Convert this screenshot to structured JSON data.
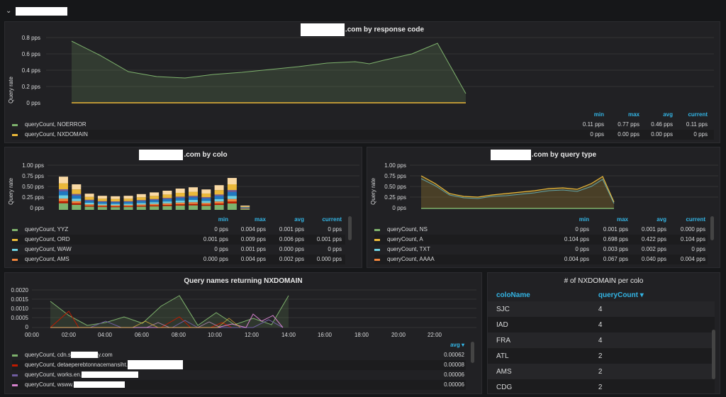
{
  "row": {
    "chevron": "⌄"
  },
  "panel1": {
    "title": ".com by response code",
    "ylabel": "Query rate",
    "yticks": [
      "0.8 pps",
      "0.6 pps",
      "0.4 pps",
      "0.2 pps",
      "0 pps"
    ],
    "headers": {
      "min": "min",
      "max": "max",
      "avg": "avg",
      "current": "current"
    },
    "series": [
      {
        "name": "queryCount, NOERROR",
        "color": "#7eb26d",
        "min": "0.11 pps",
        "max": "0.77 pps",
        "avg": "0.46 pps",
        "current": "0.11 pps"
      },
      {
        "name": "queryCount, NXDOMAIN",
        "color": "#eab839",
        "min": "0 pps",
        "max": "0.00 pps",
        "avg": "0.00 pps",
        "current": "0 pps"
      }
    ]
  },
  "panel2": {
    "title": ".com by colo",
    "ylabel": "Query rate",
    "yticks": [
      "1.00 pps",
      "0.75 pps",
      "0.50 pps",
      "0.25 pps",
      "0 pps"
    ],
    "headers": {
      "min": "min",
      "max": "max",
      "avg": "avg",
      "current": "current"
    },
    "series": [
      {
        "name": "queryCount, YYZ",
        "color": "#7eb26d",
        "min": "0 pps",
        "max": "0.004 pps",
        "avg": "0.001 pps",
        "current": "0 pps"
      },
      {
        "name": "queryCount, ORD",
        "color": "#eab839",
        "min": "0.001 pps",
        "max": "0.009 pps",
        "avg": "0.006 pps",
        "current": "0.001 pps"
      },
      {
        "name": "queryCount, WAW",
        "color": "#6ed0e0",
        "min": "0 pps",
        "max": "0.001 pps",
        "avg": "0.000 pps",
        "current": "0 pps"
      },
      {
        "name": "queryCount, AMS",
        "color": "#ef843c",
        "min": "0.000 pps",
        "max": "0.004 pps",
        "avg": "0.002 pps",
        "current": "0.000 pps"
      }
    ]
  },
  "panel3": {
    "title": ".com by query type",
    "ylabel": "Query rate",
    "yticks": [
      "1.00 pps",
      "0.75 pps",
      "0.50 pps",
      "0.25 pps",
      "0 pps"
    ],
    "headers": {
      "min": "min",
      "max": "max",
      "avg": "avg",
      "current": "current"
    },
    "series": [
      {
        "name": "queryCount, NS",
        "color": "#7eb26d",
        "min": "0 pps",
        "max": "0.001 pps",
        "avg": "0.001 pps",
        "current": "0.000 pps"
      },
      {
        "name": "queryCount, A",
        "color": "#eab839",
        "min": "0.104 pps",
        "max": "0.698 pps",
        "avg": "0.422 pps",
        "current": "0.104 pps"
      },
      {
        "name": "queryCount, TXT",
        "color": "#6ed0e0",
        "min": "0 pps",
        "max": "0.003 pps",
        "avg": "0.002 pps",
        "current": "0 pps"
      },
      {
        "name": "queryCount, AAAA",
        "color": "#ef843c",
        "min": "0.004 pps",
        "max": "0.067 pps",
        "avg": "0.040 pps",
        "current": "0.004 pps"
      }
    ]
  },
  "panel4": {
    "title": "Query names returning NXDOMAIN",
    "yticks": [
      "0.0020",
      "0.0015",
      "0.0010",
      "0.0005",
      "0"
    ],
    "xticks": [
      "00:00",
      "02:00",
      "04:00",
      "06:00",
      "08:00",
      "10:00",
      "12:00",
      "14:00",
      "16:00",
      "18:00",
      "20:00",
      "22:00"
    ],
    "avg_header": "avg ▾",
    "series": [
      {
        "name": "queryCount, cdn.s",
        "tail": "y.com",
        "color": "#7eb26d",
        "avg": "0.00062"
      },
      {
        "name": "queryCount, detaeperebtonnacemansiht.",
        "tail": "",
        "color": "#bf1b00",
        "avg": "0.00008"
      },
      {
        "name": "queryCount, works.en.",
        "tail": "",
        "color": "#705da0",
        "avg": "0.00006"
      },
      {
        "name": "queryCount, wsww.",
        "tail": "",
        "color": "#d683ce",
        "avg": "0.00006"
      }
    ]
  },
  "panel5": {
    "title": "# of NXDOMAIN per colo",
    "col1": "coloName",
    "col2": "queryCount ▾",
    "rows": [
      {
        "colo": "SJC",
        "count": "4"
      },
      {
        "colo": "IAD",
        "count": "4"
      },
      {
        "colo": "FRA",
        "count": "4"
      },
      {
        "colo": "ATL",
        "count": "2"
      },
      {
        "colo": "AMS",
        "count": "2"
      },
      {
        "colo": "CDG",
        "count": "2"
      }
    ]
  }
}
